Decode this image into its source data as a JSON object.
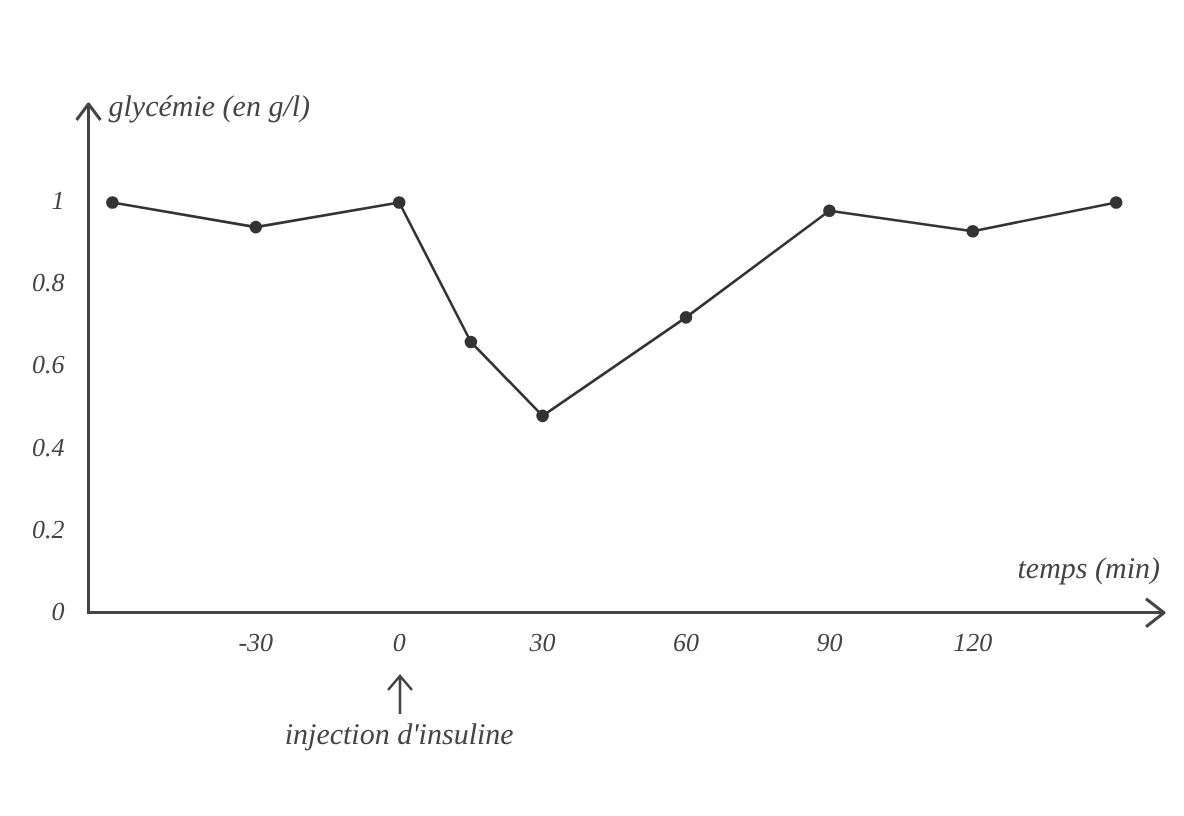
{
  "chart_data": {
    "type": "line",
    "xlabel": "temps (min)",
    "ylabel": "glycémie (en g/l)",
    "x": [
      -60,
      -30,
      0,
      15,
      30,
      60,
      90,
      120,
      150
    ],
    "series": [
      {
        "color": "#333333",
        "values": [
          1.0,
          0.94,
          1.0,
          0.66,
          0.48,
          0.72,
          0.98,
          0.93,
          1.0
        ]
      }
    ],
    "xlim": [
      -65,
      160
    ],
    "xticks": [
      -30,
      0,
      30,
      60,
      90,
      120
    ],
    "ylim": [
      0,
      1.24
    ],
    "yticks": [
      0,
      0.2,
      0.4,
      0.6,
      0.8,
      1
    ],
    "marker": "circle",
    "line_style": "solid",
    "grid": false,
    "legend": false,
    "annotations": [
      {
        "text": "injection d'insuline",
        "x": 0
      }
    ]
  }
}
